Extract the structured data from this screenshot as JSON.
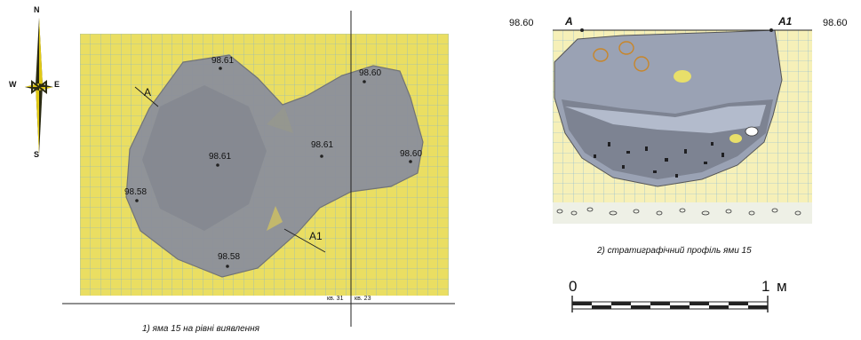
{
  "compass": {
    "n": "N",
    "s": "S",
    "w": "W",
    "e": "E"
  },
  "plan": {
    "elevations": [
      "98.61",
      "98.60",
      "98.61",
      "98.61",
      "98.60",
      "98.58",
      "98.58"
    ],
    "section_start": "A",
    "section_end": "A1",
    "squares": [
      "кв. 31",
      "кв. 23"
    ],
    "caption": "1) яма 15 на рівні виявлення"
  },
  "profile": {
    "left_elev": "98.60",
    "right_elev": "98.60",
    "start": "A",
    "end": "A1",
    "caption": "2) стратиграфічний профіль ями 15"
  },
  "scale": {
    "zero": "0",
    "one": "1",
    "unit": "м"
  },
  "colors": {
    "sand": "#f1e25a",
    "fill": "#8c909b",
    "grid": "#7bb0d6"
  }
}
